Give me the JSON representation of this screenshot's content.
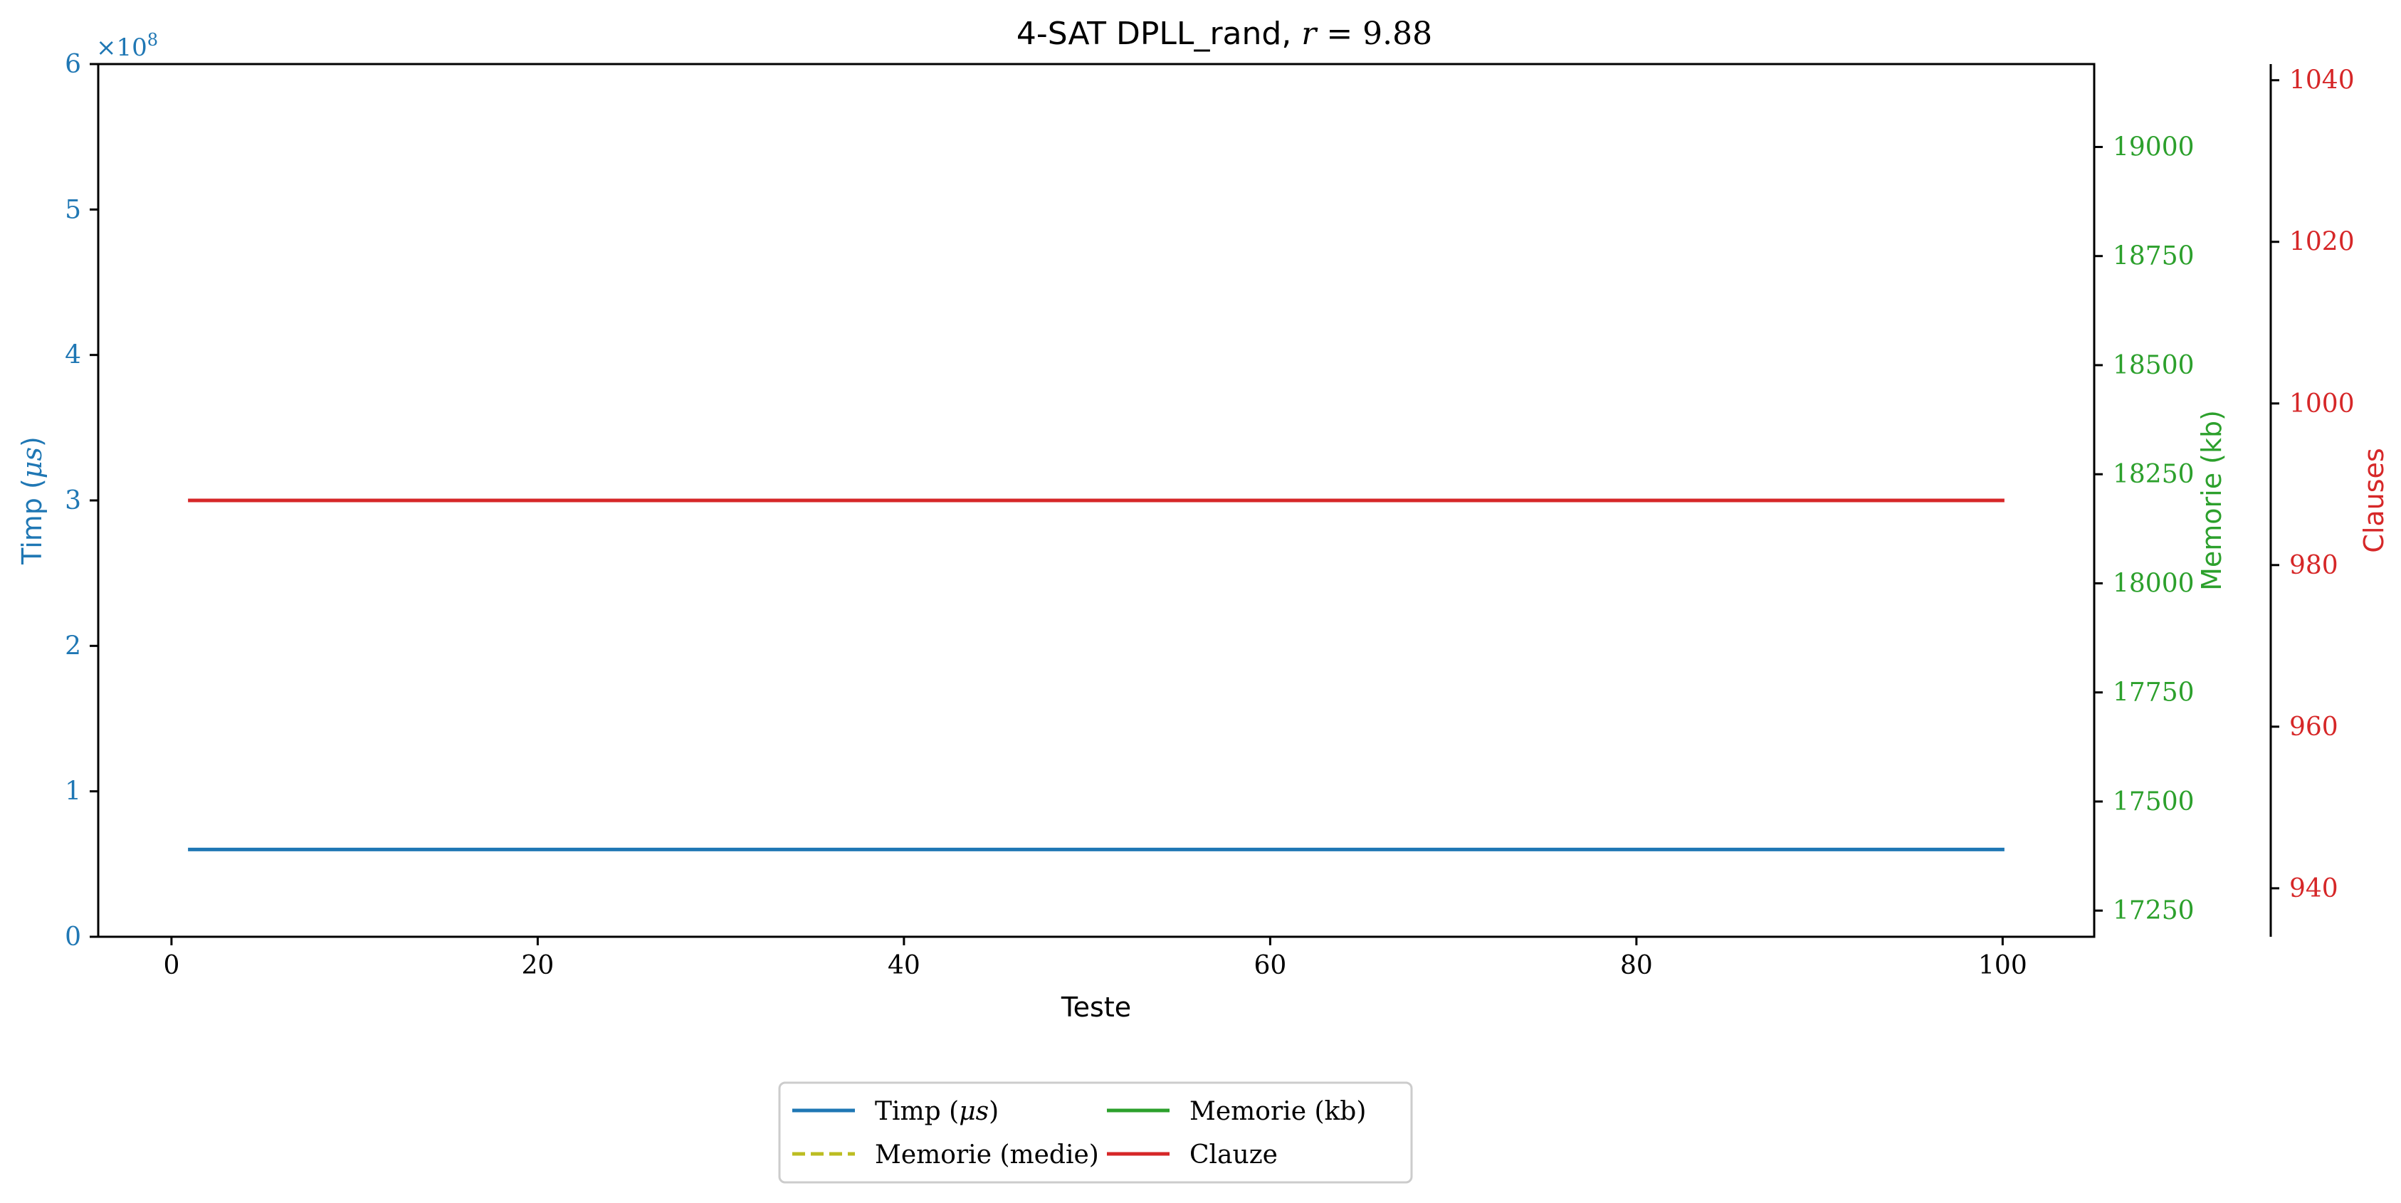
{
  "chart_data": {
    "type": "line",
    "title": {
      "prefix": "4-SAT DPLL_rand, ",
      "var": "r",
      "rest": " = 9.88"
    },
    "xlabel": "Teste",
    "x_range": [
      -4,
      105
    ],
    "x_ticks": [
      0,
      20,
      40,
      60,
      80,
      100
    ],
    "axes": {
      "time": {
        "label_prefix": "Timp (",
        "label_var": "μs",
        "label_suffix": ")",
        "color": "#1f77b4",
        "range": [
          0,
          600000000
        ],
        "ticks": [
          0,
          1,
          2,
          3,
          4,
          5,
          6
        ],
        "multiplier_text": "×10",
        "multiplier_exp": "8",
        "tick_scale": 100000000
      },
      "memory": {
        "label": "Memorie (kb)",
        "color": "#2ca02c",
        "range": [
          17190,
          19190
        ],
        "ticks": [
          17250,
          17500,
          17750,
          18000,
          18250,
          18500,
          18750,
          19000
        ]
      },
      "clauses": {
        "label": "Clauses",
        "color": "#d62728",
        "range": [
          934,
          1042
        ],
        "ticks": [
          940,
          960,
          980,
          1000,
          1020,
          1040
        ]
      }
    },
    "series": [
      {
        "name_prefix": "Timp (",
        "name_var": "μs",
        "name_suffix": ")",
        "axis": "time",
        "color": "#1f77b4",
        "dash": "solid",
        "x": [
          1,
          100
        ],
        "y": [
          60000000,
          60000000
        ]
      },
      {
        "name": "Memorie (kb)",
        "axis": "memory",
        "color": "#2ca02c",
        "dash": "solid",
        "x": [],
        "y": []
      },
      {
        "name": "Memorie (medie)",
        "axis": "memory",
        "color": "#bcbd22",
        "dash": "dashed",
        "x": [],
        "y": []
      },
      {
        "name": "Clauze",
        "axis": "clauses",
        "color": "#d62728",
        "dash": "solid",
        "x": [
          1,
          100
        ],
        "y": [
          988,
          988
        ]
      }
    ],
    "legend": {
      "placement": "bottom-center",
      "columns": 2,
      "order": [
        0,
        2,
        1,
        3
      ]
    },
    "grid": false
  }
}
